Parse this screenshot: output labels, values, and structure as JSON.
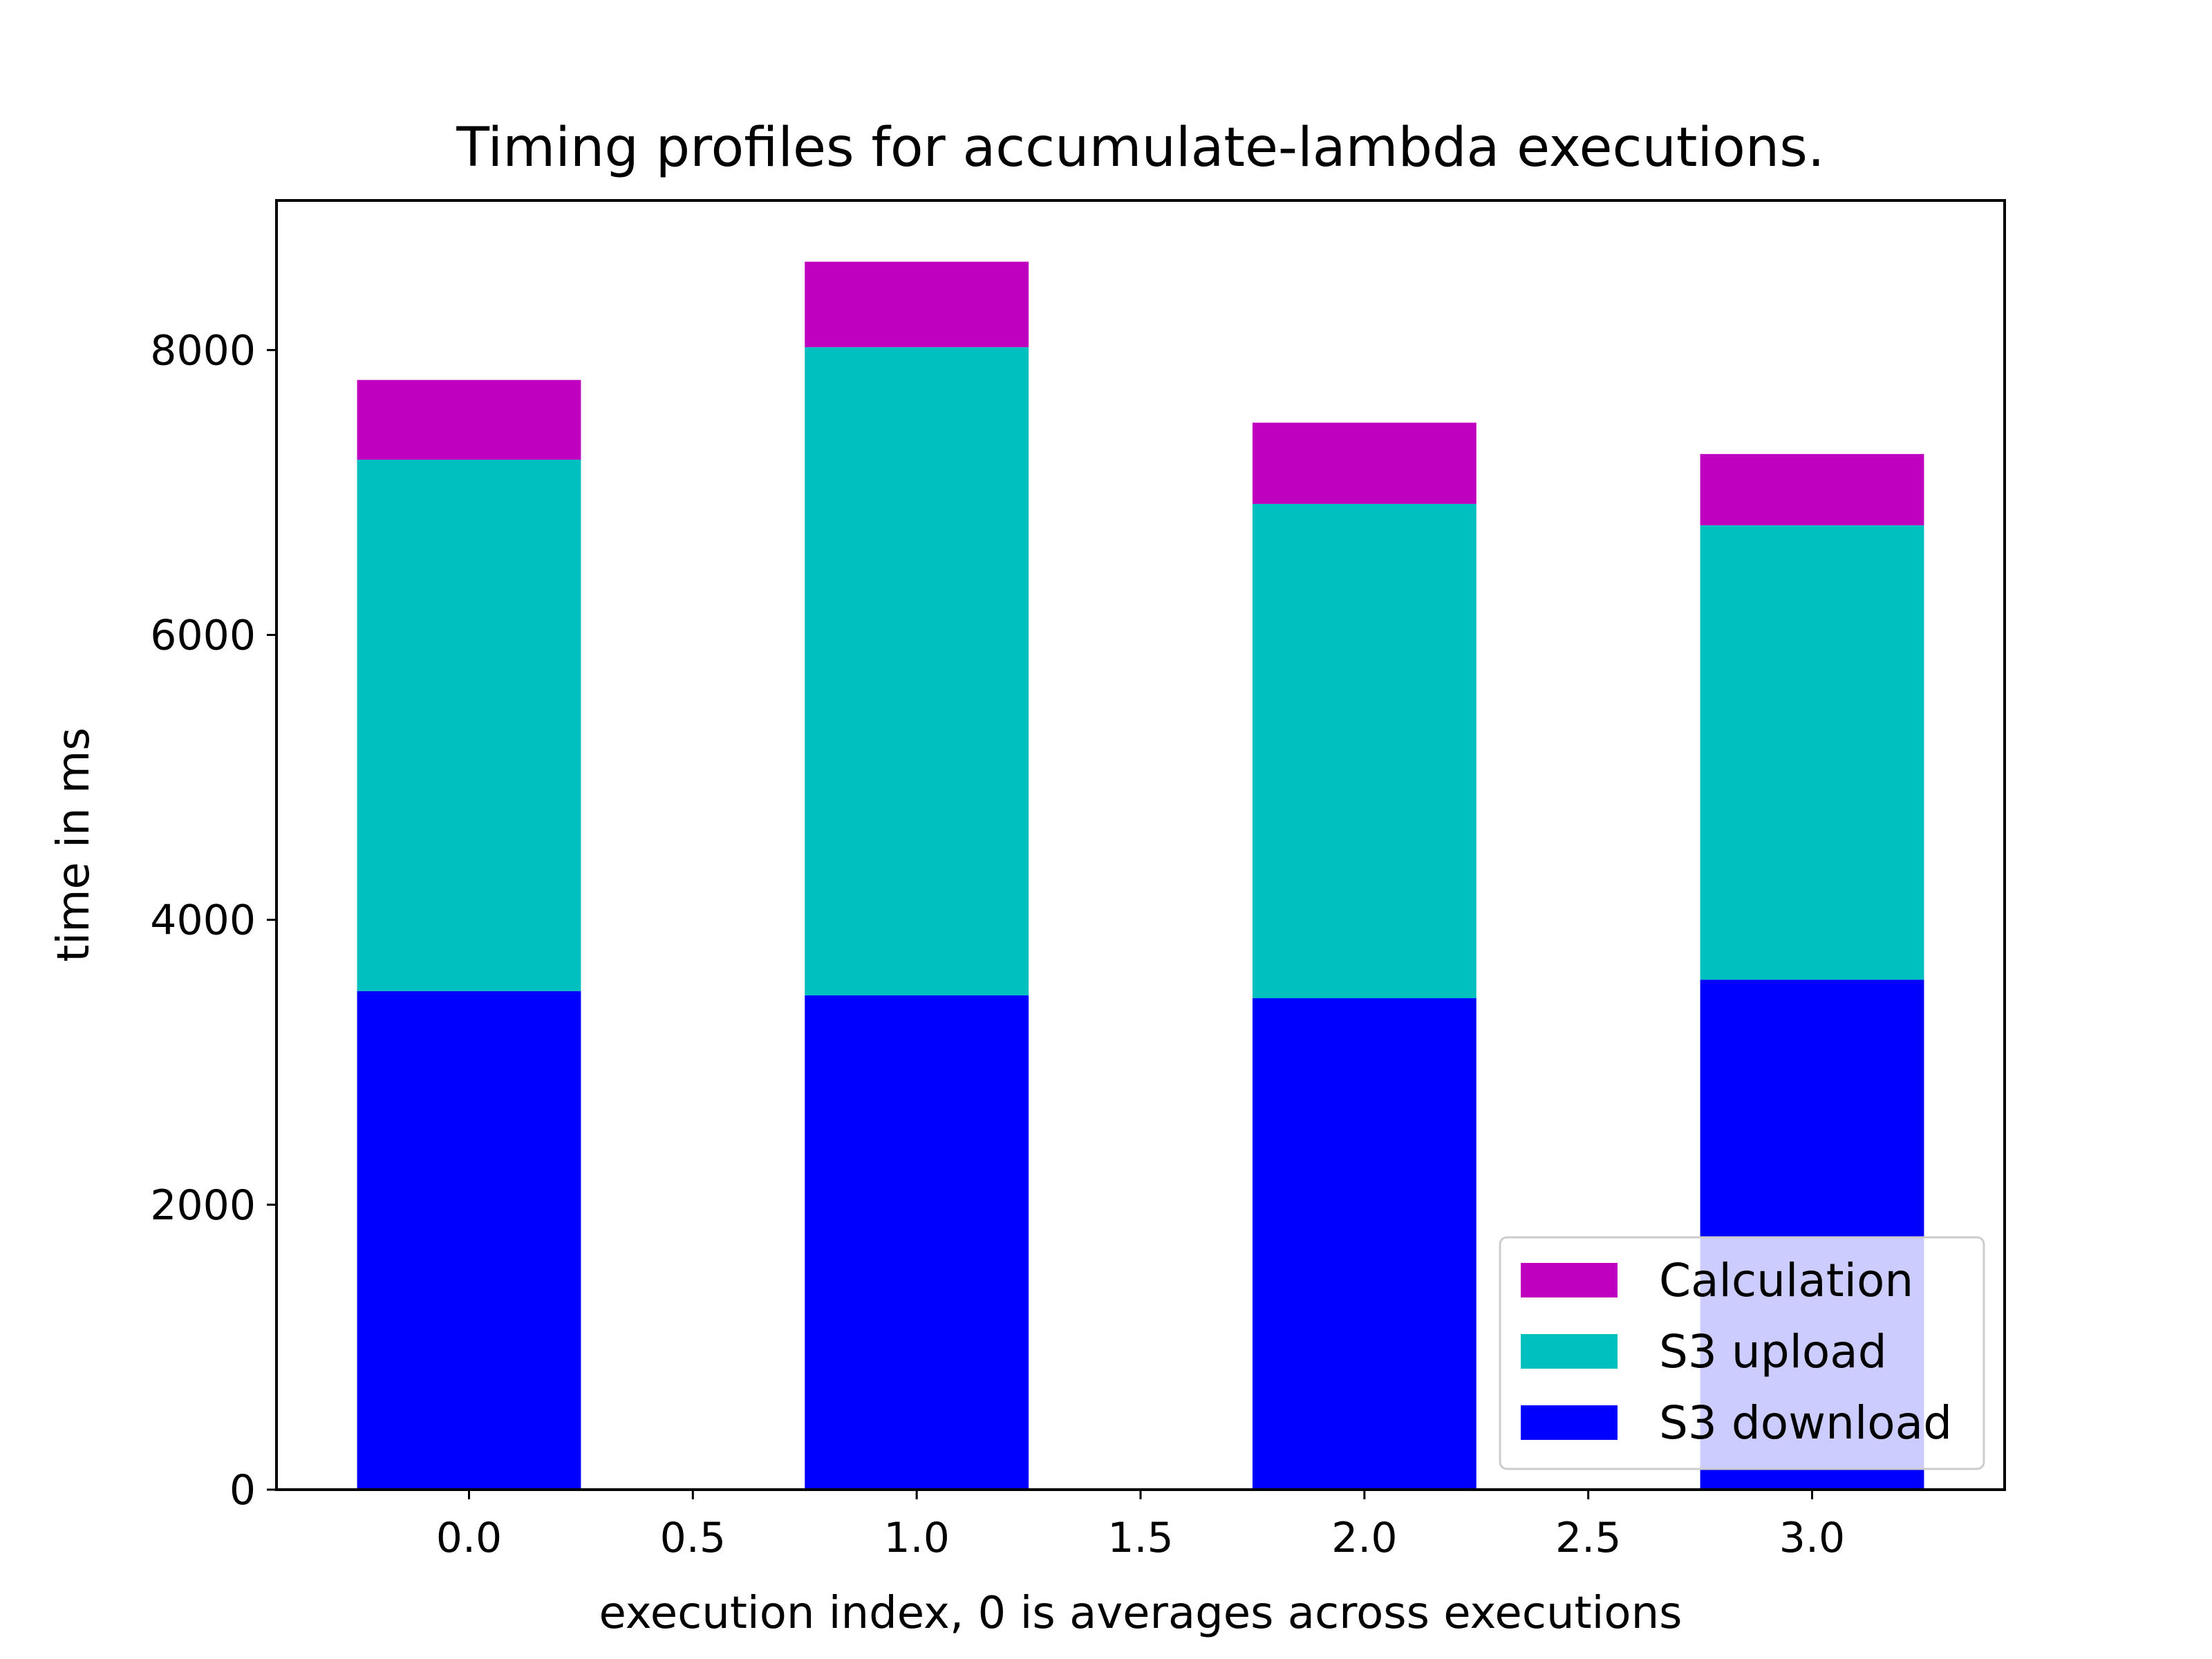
{
  "chart_data": {
    "type": "bar",
    "stacked": true,
    "title": "Timing profiles for accumulate-lambda executions.",
    "xlabel": "execution index, 0 is averages across executions",
    "ylabel": "time in ms",
    "x": [
      0,
      1,
      2,
      3
    ],
    "bar_width": 0.5,
    "xlim": [
      -0.43,
      3.43
    ],
    "ylim": [
      0,
      9050
    ],
    "xticks": [
      0.0,
      0.5,
      1.0,
      1.5,
      2.0,
      2.5,
      3.0
    ],
    "xtick_labels": [
      "0.0",
      "0.5",
      "1.0",
      "1.5",
      "2.0",
      "2.5",
      "3.0"
    ],
    "yticks": [
      0,
      2000,
      4000,
      6000,
      8000
    ],
    "ytick_labels": [
      "0",
      "2000",
      "4000",
      "6000",
      "8000"
    ],
    "grid": false,
    "legend_position": "lower-right",
    "series": [
      {
        "name": "S3 download",
        "color": "#0000ff",
        "values": [
          3500,
          3470,
          3450,
          3580
        ]
      },
      {
        "name": "S3 upload",
        "color": "#00bfbf",
        "values": [
          3730,
          4550,
          3470,
          3190
        ]
      },
      {
        "name": "Calculation",
        "color": "#bf00bf",
        "values": [
          560,
          600,
          570,
          500
        ]
      }
    ],
    "legend_order": [
      "Calculation",
      "S3 upload",
      "S3 download"
    ]
  }
}
